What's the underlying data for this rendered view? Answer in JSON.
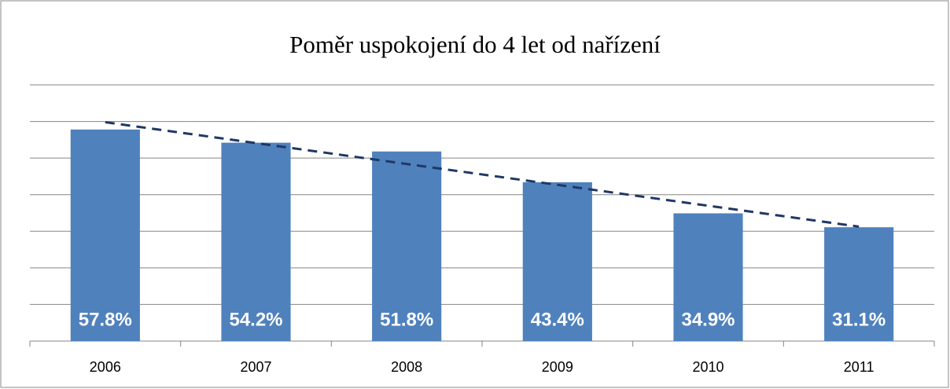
{
  "chart_data": {
    "type": "bar",
    "title": "Poměr uspokojení do 4 let od nařízení",
    "categories": [
      "2006",
      "2007",
      "2008",
      "2009",
      "2010",
      "2011"
    ],
    "values": [
      57.8,
      54.2,
      51.8,
      43.4,
      34.9,
      31.1
    ],
    "value_labels": [
      "57.8%",
      "54.2%",
      "51.8%",
      "43.4%",
      "34.9%",
      "31.1%"
    ],
    "color": "#4f81bd",
    "ylim": [
      0,
      70
    ],
    "yticks": [
      0,
      10,
      20,
      30,
      40,
      50,
      60,
      70
    ],
    "grid": true,
    "trendline": "linear",
    "trendline_color": "#1f3864"
  }
}
